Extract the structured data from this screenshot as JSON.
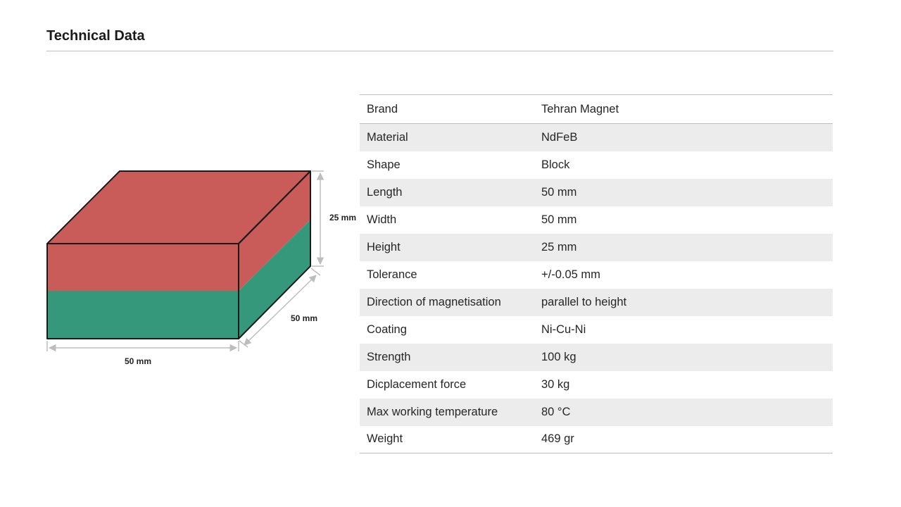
{
  "header": {
    "title": "Technical Data"
  },
  "diagram": {
    "labels": {
      "height": "25 mm",
      "depth": "50 mm",
      "length": "50 mm"
    },
    "colors": {
      "north_pole": "#c95b59",
      "south_pole": "#36987b",
      "outline": "#1a1a1a",
      "dimension_line": "#bdbdbd"
    }
  },
  "specs": {
    "rows": [
      {
        "label": "Brand",
        "value": "Tehran Magnet"
      },
      {
        "label": "Material",
        "value": "NdFeB"
      },
      {
        "label": "Shape",
        "value": "Block"
      },
      {
        "label": "Length",
        "value": "50 mm"
      },
      {
        "label": "Width",
        "value": "50 mm"
      },
      {
        "label": "Height",
        "value": "25 mm"
      },
      {
        "label": "Tolerance",
        "value": "+/-0.05 mm"
      },
      {
        "label": "Direction of magnetisation",
        "value": "parallel to height"
      },
      {
        "label": "Coating",
        "value": "Ni-Cu-Ni"
      },
      {
        "label": "Strength",
        "value": "100 kg"
      },
      {
        "label": "Dicplacement force",
        "value": "30 kg"
      },
      {
        "label": "Max working temperature",
        "value": "80 °C"
      },
      {
        "label": "Weight",
        "value": "469 gr"
      }
    ]
  }
}
